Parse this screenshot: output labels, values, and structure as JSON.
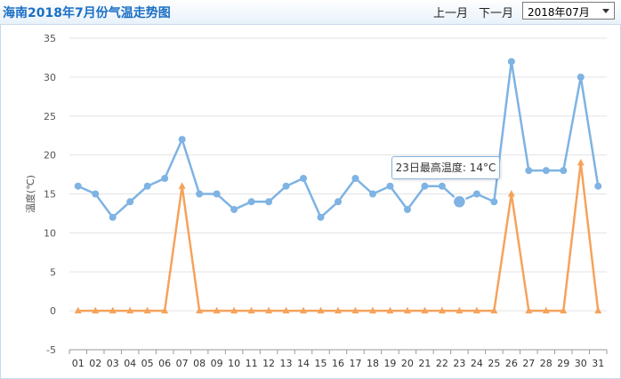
{
  "header": {
    "title": "海南2018年7月份气温走势图",
    "prev_label": "上一月",
    "next_label": "下一月",
    "month_select": {
      "selected": "2018年07月"
    }
  },
  "tooltip": {
    "text": "23日最高温度: 14°C"
  },
  "colors": {
    "high": "#7eb3e3",
    "low": "#f5a35c",
    "grid": "#e3e3e3",
    "axis": "#999999",
    "title": "#1a6fc4"
  },
  "chart_data": {
    "type": "line",
    "title": "",
    "xlabel": "",
    "ylabel": "温度(℃)",
    "ylim": [
      -5,
      35
    ],
    "yticks": [
      35,
      30,
      25,
      20,
      15,
      10,
      5,
      0,
      -5
    ],
    "grid": true,
    "categories": [
      "01",
      "02",
      "03",
      "04",
      "05",
      "06",
      "07",
      "08",
      "09",
      "10",
      "11",
      "12",
      "13",
      "14",
      "15",
      "16",
      "17",
      "18",
      "19",
      "20",
      "21",
      "22",
      "23",
      "24",
      "25",
      "26",
      "27",
      "28",
      "29",
      "30",
      "31"
    ],
    "series": [
      {
        "values": [
          16,
          15,
          12,
          14,
          16,
          17,
          22,
          15,
          15,
          13,
          14,
          14,
          16,
          17,
          12,
          14,
          17,
          15,
          16,
          13,
          16,
          16,
          14,
          15,
          14,
          32,
          18,
          18,
          18,
          30,
          16
        ],
        "marker": "circle"
      },
      {
        "values": [
          0,
          0,
          0,
          0,
          0,
          0,
          16,
          0,
          0,
          0,
          0,
          0,
          0,
          0,
          0,
          0,
          0,
          0,
          0,
          0,
          0,
          0,
          0,
          0,
          0,
          15,
          0,
          0,
          0,
          19,
          0
        ],
        "marker": "triangle"
      }
    ],
    "highlight": {
      "series": 0,
      "index": 22
    }
  }
}
